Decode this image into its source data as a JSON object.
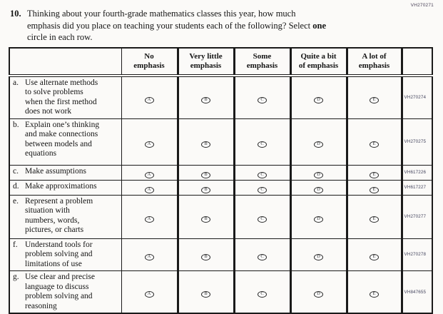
{
  "page": {
    "top_right_code": "VH270271"
  },
  "question": {
    "number": "10.",
    "text_part1": "Thinking about your fourth-grade mathematics classes this year, how much\nemphasis did you place on teaching your students each of the following? Select ",
    "bold_word": "one",
    "text_part2": "\ncircle in each row."
  },
  "table": {
    "columns": [
      "No\nemphasis",
      "Very little\nemphasis",
      "Some\nemphasis",
      "Quite a bit\nof emphasis",
      "A lot of\nemphasis"
    ],
    "options": [
      "A",
      "B",
      "C",
      "D",
      "E"
    ],
    "rows": [
      {
        "letter": "a.",
        "text": "Use alternate methods\nto solve problems\nwhen the first method\ndoes not work",
        "code": "VH270274"
      },
      {
        "letter": "b.",
        "text": "Explain one’s thinking\nand make connections\nbetween models and\nequations",
        "code": "VH270275"
      },
      {
        "letter": "c.",
        "text": "Make assumptions",
        "code": "VH617226"
      },
      {
        "letter": "d.",
        "text": "Make approximations",
        "code": "VH617227"
      },
      {
        "letter": "e.",
        "text": "Represent a problem\nsituation with\nnumbers, words,\npictures, or charts",
        "code": "VH270277"
      },
      {
        "letter": "f.",
        "text": "Understand tools for\nproblem solving and\nlimitations of use",
        "code": "VH270278"
      },
      {
        "letter": "g.",
        "text": "Use clear and precise\nlanguage to discuss\nproblem solving and\nreasoning",
        "code": "VH847655"
      }
    ]
  }
}
